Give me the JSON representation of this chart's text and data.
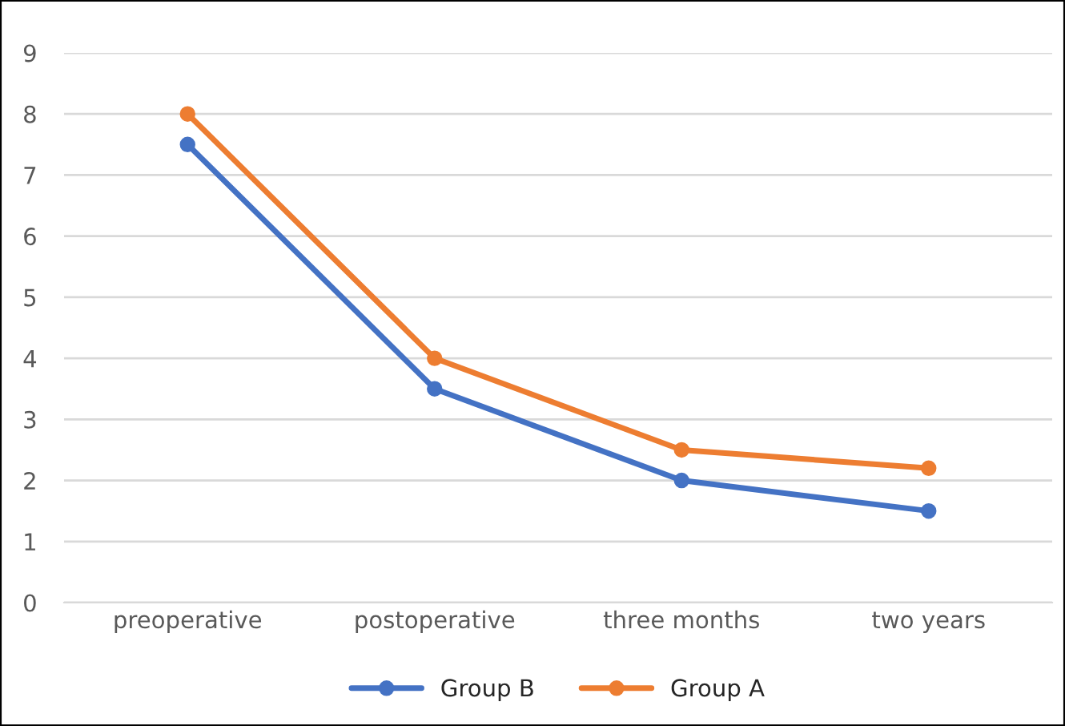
{
  "chart_data": {
    "type": "line",
    "categories": [
      "preoperative",
      "postoperative",
      "three months",
      "two years"
    ],
    "series": [
      {
        "name": "Group B",
        "color": "#4472c4",
        "values": [
          7.5,
          3.5,
          2.0,
          1.5
        ]
      },
      {
        "name": "Group A",
        "color": "#ed7d31",
        "values": [
          8.0,
          4.0,
          2.5,
          2.2
        ]
      }
    ],
    "ylim": [
      0,
      9
    ],
    "yticks": [
      0,
      1,
      2,
      3,
      4,
      5,
      6,
      7,
      8,
      9
    ],
    "grid": "y",
    "legend": "bottom",
    "marker": "circle",
    "line_style": "solid"
  }
}
